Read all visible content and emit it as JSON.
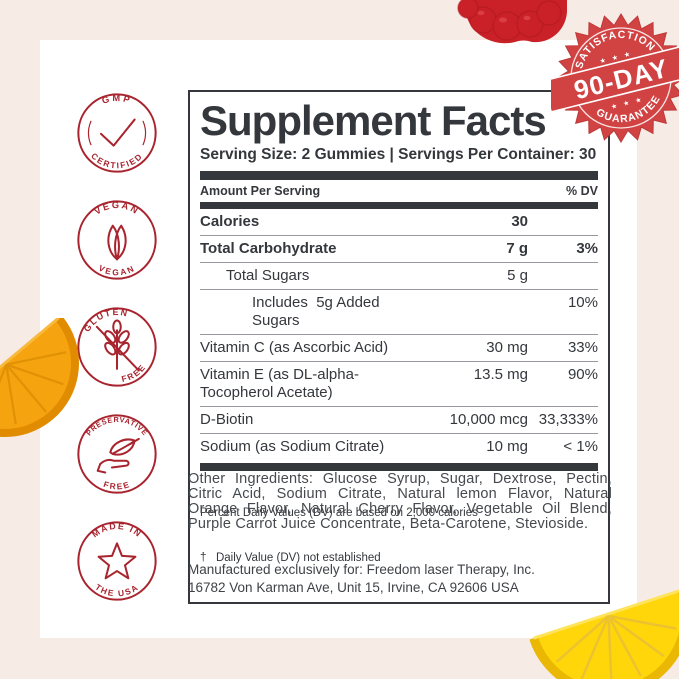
{
  "colors": {
    "background": "#f7ebe6",
    "card": "#ffffff",
    "label_ink": "#34373c",
    "badge_red": "#a8242e",
    "guarantee_red": "#d14343",
    "raspberry_red": "#ca2027",
    "orange": "#f5a30f",
    "lemon": "#ffd60a"
  },
  "badges": [
    {
      "id": "gmp-certified",
      "top_text": "GMP",
      "bottom_text": "CERTIFIED",
      "icon": "check-icon"
    },
    {
      "id": "vegan",
      "top_text": "VEGAN",
      "bottom_text": "VEGAN",
      "icon": "leaves-icon"
    },
    {
      "id": "gluten-free",
      "top_text": "GLUTEN",
      "bottom_text": "FREE",
      "icon": "wheat-slash-icon"
    },
    {
      "id": "preservative-free",
      "top_text": "PRESERVATIVE",
      "bottom_text": "FREE",
      "icon": "hand-leaf-icon"
    },
    {
      "id": "made-in-usa",
      "top_text": "MADE IN",
      "bottom_text": "THE USA",
      "icon": "star-icon"
    }
  ],
  "guarantee_badge": {
    "top_text": "SATISFACTION",
    "ribbon_text": "90-DAY",
    "bottom_text": "GUARANTEE",
    "stars_top": "★ ★ ★",
    "stars_bottom": "★ ★ ★"
  },
  "supplement_facts": {
    "title": "Supplement Facts",
    "serving_line": "Serving Size: 2 Gummies | Servings Per Container: 30",
    "header_left": "Amount Per Serving",
    "header_right": "% DV",
    "rows": [
      {
        "name": "Calories",
        "amount": "30",
        "dv": "",
        "bold": true,
        "indent": 0
      },
      {
        "name": "Total Carbohydrate",
        "amount": "7 g",
        "dv": "3%",
        "bold": true,
        "indent": 0
      },
      {
        "name": "Total Sugars",
        "amount": "5 g",
        "dv": "",
        "bold": false,
        "indent": 1
      },
      {
        "name": "Includes  5g Added Sugars",
        "amount": "",
        "dv": "10%",
        "bold": false,
        "indent": 2
      },
      {
        "name": "Vitamin C (as Ascorbic Acid)",
        "amount": "30 mg",
        "dv": "33%",
        "bold": false,
        "indent": 0
      },
      {
        "name": "Vitamin E (as DL-alpha-Tocopherol Acetate)",
        "amount": "13.5 mg",
        "dv": "90%",
        "bold": false,
        "indent": 0
      },
      {
        "name": "D-Biotin",
        "amount": "10,000 mcg",
        "dv": "33,333%",
        "bold": false,
        "indent": 0
      },
      {
        "name": "Sodium (as Sodium Citrate)",
        "amount": "10 mg",
        "dv": "< 1%",
        "bold": false,
        "indent": 0
      }
    ],
    "footnotes": [
      "Percent Daily Values (DV) are based on 2,000 calories",
      "†   Daily Value (DV) not established"
    ]
  },
  "other_ingredients": "Other Ingredients: Glucose Syrup, Sugar, Dextrose, Pectin, Citric Acid, Sodium Citrate, Natural lemon Flavor, Natural Orange Flavor, Natural Cherry Flavor, Vegetable Oil Blend, Purple Carrot Juice Concentrate, Beta-Carotene, Stevioside.",
  "manufacturer": {
    "line1": "Manufactured exclusively for: Freedom laser Therapy, Inc.",
    "line2": "16782 Von Karman Ave, Unit 15, Irvine, CA 92606 USA"
  },
  "decorations": {
    "top": "raspberry-gummy",
    "left": "orange-gummy-slice",
    "bottom_right": "lemon-gummy-slice"
  }
}
